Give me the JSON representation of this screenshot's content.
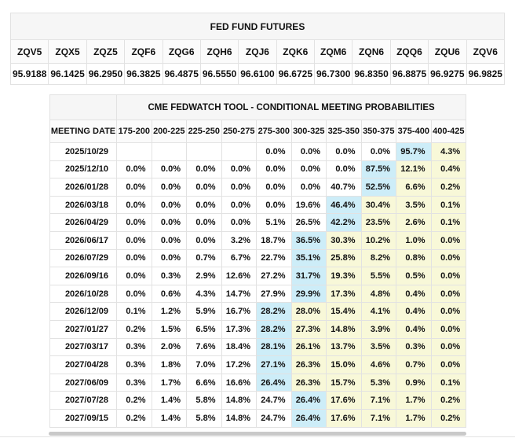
{
  "colors": {
    "highlight_blue": "#cdedf8",
    "highlight_yellow": "#f8f8d8",
    "title_band_bg": "#f6f6f6"
  },
  "futures": {
    "title": "FED FUND FUTURES",
    "columns": [
      "ZQV5",
      "ZQX5",
      "ZQZ5",
      "ZQF6",
      "ZQG6",
      "ZQH6",
      "ZQJ6",
      "ZQK6",
      "ZQM6",
      "ZQN6",
      "ZQQ6",
      "ZQU6",
      "ZQV6"
    ],
    "prices": [
      "95.9188",
      "96.1425",
      "96.2950",
      "96.3825",
      "96.4875",
      "96.5550",
      "96.6100",
      "96.6725",
      "96.7300",
      "96.8350",
      "96.8875",
      "96.9275",
      "96.9825"
    ]
  },
  "fedwatch": {
    "title": "CME FEDWATCH TOOL - CONDITIONAL MEETING PROBABILITIES",
    "date_column_header": "MEETING DATE",
    "rate_columns": [
      "175-200",
      "200-225",
      "225-250",
      "250-275",
      "275-300",
      "300-325",
      "325-350",
      "350-375",
      "375-400",
      "400-425"
    ],
    "rows": [
      {
        "date": "2025/10/29",
        "values": [
          "",
          "",
          "",
          "",
          "0.0%",
          "0.0%",
          "0.0%",
          "0.0%",
          "95.7%",
          "4.3%"
        ],
        "max_col": 8
      },
      {
        "date": "2025/12/10",
        "values": [
          "0.0%",
          "0.0%",
          "0.0%",
          "0.0%",
          "0.0%",
          "0.0%",
          "0.0%",
          "87.5%",
          "12.1%",
          "0.4%"
        ],
        "max_col": 7
      },
      {
        "date": "2026/01/28",
        "values": [
          "0.0%",
          "0.0%",
          "0.0%",
          "0.0%",
          "0.0%",
          "0.0%",
          "40.7%",
          "52.5%",
          "6.6%",
          "0.2%"
        ],
        "max_col": 7
      },
      {
        "date": "2026/03/18",
        "values": [
          "0.0%",
          "0.0%",
          "0.0%",
          "0.0%",
          "0.0%",
          "19.6%",
          "46.4%",
          "30.4%",
          "3.5%",
          "0.1%"
        ],
        "max_col": 6
      },
      {
        "date": "2026/04/29",
        "values": [
          "0.0%",
          "0.0%",
          "0.0%",
          "0.0%",
          "5.1%",
          "26.5%",
          "42.2%",
          "23.5%",
          "2.6%",
          "0.1%"
        ],
        "max_col": 6
      },
      {
        "date": "2026/06/17",
        "values": [
          "0.0%",
          "0.0%",
          "0.0%",
          "3.2%",
          "18.7%",
          "36.5%",
          "30.3%",
          "10.2%",
          "1.0%",
          "0.0%"
        ],
        "max_col": 5
      },
      {
        "date": "2026/07/29",
        "values": [
          "0.0%",
          "0.0%",
          "0.7%",
          "6.7%",
          "22.7%",
          "35.1%",
          "25.8%",
          "8.2%",
          "0.8%",
          "0.0%"
        ],
        "max_col": 5
      },
      {
        "date": "2026/09/16",
        "values": [
          "0.0%",
          "0.3%",
          "2.9%",
          "12.6%",
          "27.2%",
          "31.7%",
          "19.3%",
          "5.5%",
          "0.5%",
          "0.0%"
        ],
        "max_col": 5
      },
      {
        "date": "2026/10/28",
        "values": [
          "0.0%",
          "0.6%",
          "4.3%",
          "14.7%",
          "27.9%",
          "29.9%",
          "17.3%",
          "4.8%",
          "0.4%",
          "0.0%"
        ],
        "max_col": 5
      },
      {
        "date": "2026/12/09",
        "values": [
          "0.1%",
          "1.2%",
          "5.9%",
          "16.7%",
          "28.2%",
          "28.0%",
          "15.4%",
          "4.1%",
          "0.4%",
          "0.0%"
        ],
        "max_col": 4
      },
      {
        "date": "2027/01/27",
        "values": [
          "0.2%",
          "1.5%",
          "6.5%",
          "17.3%",
          "28.2%",
          "27.3%",
          "14.8%",
          "3.9%",
          "0.4%",
          "0.0%"
        ],
        "max_col": 4
      },
      {
        "date": "2027/03/17",
        "values": [
          "0.3%",
          "2.0%",
          "7.6%",
          "18.4%",
          "28.1%",
          "26.1%",
          "13.7%",
          "3.5%",
          "0.3%",
          "0.0%"
        ],
        "max_col": 4
      },
      {
        "date": "2027/04/28",
        "values": [
          "0.3%",
          "1.8%",
          "7.0%",
          "17.2%",
          "27.1%",
          "26.3%",
          "15.0%",
          "4.6%",
          "0.7%",
          "0.0%"
        ],
        "max_col": 4
      },
      {
        "date": "2027/06/09",
        "values": [
          "0.3%",
          "1.7%",
          "6.6%",
          "16.6%",
          "26.4%",
          "26.3%",
          "15.7%",
          "5.3%",
          "0.9%",
          "0.1%"
        ],
        "max_col": 4
      },
      {
        "date": "2027/07/28",
        "values": [
          "0.2%",
          "1.4%",
          "5.8%",
          "14.8%",
          "24.7%",
          "26.4%",
          "17.6%",
          "7.1%",
          "1.7%",
          "0.2%"
        ],
        "max_col": 5
      },
      {
        "date": "2027/09/15",
        "values": [
          "0.2%",
          "1.4%",
          "5.8%",
          "14.8%",
          "24.7%",
          "26.4%",
          "17.6%",
          "7.1%",
          "1.7%",
          "0.2%"
        ],
        "max_col": 5
      }
    ]
  }
}
